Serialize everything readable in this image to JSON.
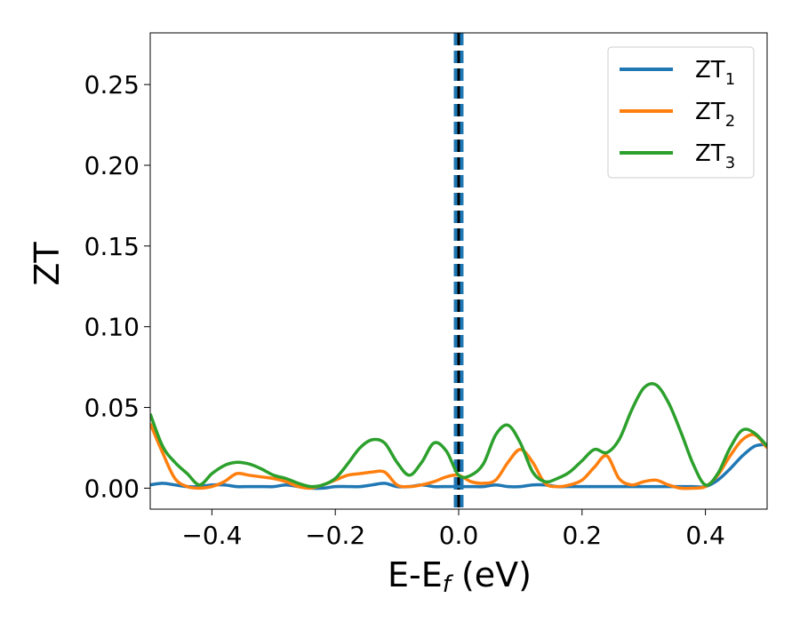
{
  "chart_data": {
    "type": "line",
    "xlabel": "E-E",
    "xlabel_subscript": "f",
    "xlabel_unit": " (eV)",
    "ylabel": "ZT",
    "xlim": [
      -0.5,
      0.5
    ],
    "ylim": [
      -0.013,
      0.282
    ],
    "xticks": [
      -0.4,
      -0.2,
      0.0,
      0.2,
      0.4
    ],
    "xtick_labels": [
      "−0.4",
      "−0.2",
      "0.0",
      "0.2",
      "0.4"
    ],
    "yticks": [
      0.0,
      0.05,
      0.1,
      0.15,
      0.2,
      0.25
    ],
    "ytick_labels": [
      "0.00",
      "0.05",
      "0.10",
      "0.15",
      "0.20",
      "0.25"
    ],
    "grid": false,
    "legend_position": "top-right",
    "vlines": [
      {
        "x": 0.0,
        "color": "#000000",
        "style": "dashed"
      },
      {
        "x": -0.005,
        "color": "#1f77b4",
        "style": "dashed"
      },
      {
        "x": 0.005,
        "color": "#1f77b4",
        "style": "dashed"
      }
    ],
    "series": [
      {
        "name": "ZT",
        "name_subscript": "1",
        "color": "#1f77b4",
        "x": [
          -0.5,
          -0.48,
          -0.46,
          -0.44,
          -0.42,
          -0.4,
          -0.38,
          -0.36,
          -0.34,
          -0.32,
          -0.3,
          -0.28,
          -0.26,
          -0.24,
          -0.22,
          -0.2,
          -0.18,
          -0.16,
          -0.14,
          -0.12,
          -0.1,
          -0.08,
          -0.06,
          -0.04,
          -0.02,
          0.0,
          0.02,
          0.04,
          0.06,
          0.08,
          0.1,
          0.12,
          0.14,
          0.16,
          0.18,
          0.2,
          0.22,
          0.24,
          0.26,
          0.28,
          0.3,
          0.32,
          0.34,
          0.36,
          0.38,
          0.4,
          0.42,
          0.44,
          0.46,
          0.48,
          0.5
        ],
        "y": [
          0.002,
          0.003,
          0.002,
          0.001,
          0.001,
          0.002,
          0.002,
          0.001,
          0.001,
          0.001,
          0.001,
          0.002,
          0.001,
          0.0,
          0.0,
          0.001,
          0.001,
          0.001,
          0.002,
          0.003,
          0.001,
          0.001,
          0.002,
          0.001,
          0.001,
          0.001,
          0.001,
          0.001,
          0.002,
          0.001,
          0.001,
          0.002,
          0.002,
          0.001,
          0.001,
          0.001,
          0.001,
          0.001,
          0.001,
          0.001,
          0.001,
          0.001,
          0.001,
          0.001,
          0.001,
          0.001,
          0.005,
          0.012,
          0.02,
          0.026,
          0.027
        ]
      },
      {
        "name": "ZT",
        "name_subscript": "2",
        "color": "#ff7f0e",
        "x": [
          -0.5,
          -0.48,
          -0.46,
          -0.44,
          -0.42,
          -0.4,
          -0.38,
          -0.36,
          -0.34,
          -0.32,
          -0.3,
          -0.28,
          -0.26,
          -0.24,
          -0.22,
          -0.2,
          -0.18,
          -0.16,
          -0.14,
          -0.12,
          -0.1,
          -0.08,
          -0.06,
          -0.04,
          -0.02,
          0.0,
          0.02,
          0.04,
          0.06,
          0.08,
          0.1,
          0.12,
          0.14,
          0.16,
          0.18,
          0.2,
          0.22,
          0.24,
          0.26,
          0.28,
          0.3,
          0.32,
          0.34,
          0.36,
          0.38,
          0.4,
          0.42,
          0.44,
          0.46,
          0.48,
          0.5
        ],
        "y": [
          0.04,
          0.022,
          0.006,
          0.001,
          0.0,
          0.001,
          0.004,
          0.009,
          0.008,
          0.007,
          0.006,
          0.004,
          0.001,
          0.0,
          0.002,
          0.005,
          0.008,
          0.009,
          0.01,
          0.01,
          0.002,
          0.001,
          0.002,
          0.004,
          0.007,
          0.008,
          0.004,
          0.003,
          0.005,
          0.016,
          0.024,
          0.016,
          0.003,
          0.001,
          0.002,
          0.005,
          0.013,
          0.02,
          0.006,
          0.002,
          0.004,
          0.005,
          0.002,
          0.0,
          0.0,
          0.001,
          0.008,
          0.02,
          0.03,
          0.033,
          0.025
        ]
      },
      {
        "name": "ZT",
        "name_subscript": "3",
        "color": "#2ca02c",
        "x": [
          -0.5,
          -0.48,
          -0.46,
          -0.44,
          -0.42,
          -0.4,
          -0.38,
          -0.36,
          -0.34,
          -0.32,
          -0.3,
          -0.28,
          -0.26,
          -0.24,
          -0.22,
          -0.2,
          -0.18,
          -0.16,
          -0.14,
          -0.12,
          -0.1,
          -0.08,
          -0.06,
          -0.04,
          -0.02,
          0.0,
          0.02,
          0.04,
          0.06,
          0.08,
          0.1,
          0.12,
          0.14,
          0.16,
          0.18,
          0.2,
          0.22,
          0.24,
          0.26,
          0.28,
          0.3,
          0.32,
          0.34,
          0.36,
          0.38,
          0.4,
          0.42,
          0.44,
          0.46,
          0.48,
          0.5
        ],
        "y": [
          0.046,
          0.026,
          0.016,
          0.009,
          0.002,
          0.009,
          0.014,
          0.016,
          0.015,
          0.012,
          0.008,
          0.006,
          0.003,
          0.001,
          0.002,
          0.006,
          0.015,
          0.025,
          0.03,
          0.028,
          0.016,
          0.008,
          0.016,
          0.028,
          0.023,
          0.008,
          0.008,
          0.015,
          0.033,
          0.039,
          0.028,
          0.01,
          0.004,
          0.006,
          0.01,
          0.017,
          0.024,
          0.022,
          0.03,
          0.048,
          0.062,
          0.064,
          0.053,
          0.035,
          0.015,
          0.002,
          0.009,
          0.025,
          0.036,
          0.034,
          0.026
        ]
      }
    ]
  }
}
